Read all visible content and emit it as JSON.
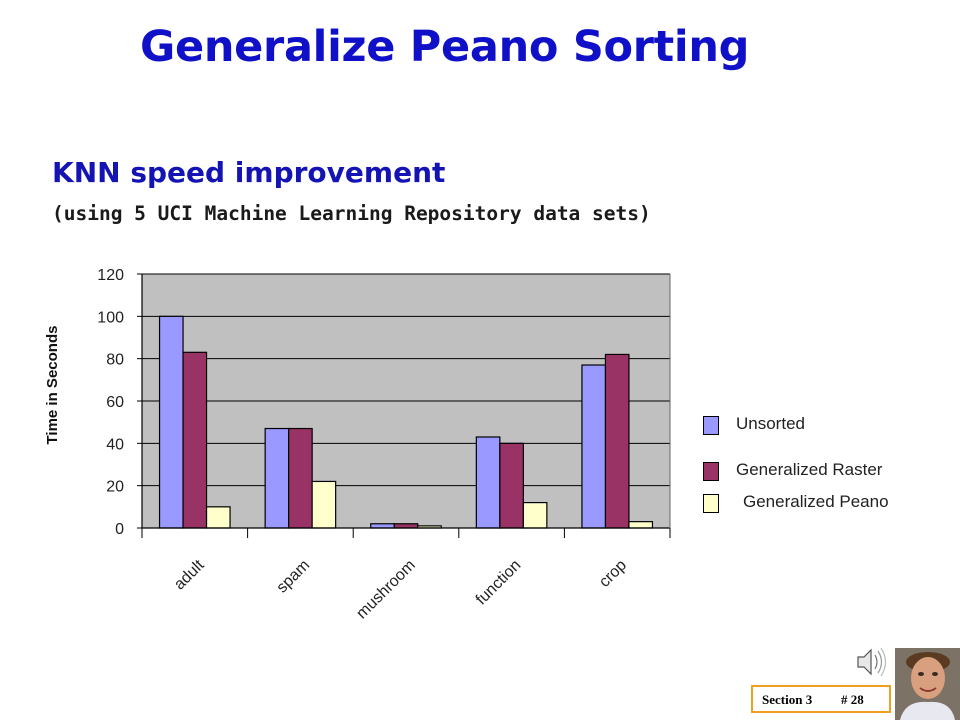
{
  "slide": {
    "title": "Generalize Peano Sorting",
    "subtitle": "KNN speed improvement",
    "subsubtitle": "(using 5 UCI Machine Learning Repository data sets)",
    "footer": {
      "section": "Section 3",
      "page": "# 28"
    }
  },
  "chart_data": {
    "type": "bar",
    "categories": [
      "adult",
      "spam",
      "mushroom",
      "function",
      "crop"
    ],
    "series": [
      {
        "name": "Unsorted",
        "values": [
          100,
          47,
          2,
          43,
          77
        ],
        "color": "#9999ff"
      },
      {
        "name": "Generalized Raster",
        "values": [
          83,
          47,
          2,
          40,
          82
        ],
        "color": "#993366"
      },
      {
        "name": "Generalized Peano",
        "values": [
          10,
          22,
          1,
          12,
          3
        ],
        "color": "#ffffcc"
      }
    ],
    "title": "",
    "xlabel": "",
    "ylabel": "Time in Seconds",
    "ylim": [
      0,
      120
    ],
    "yticks": [
      0,
      20,
      40,
      60,
      80,
      100,
      120
    ],
    "grid": true,
    "plot_background": "#c0c0c0",
    "legend_position": "right"
  },
  "icons": {
    "speaker": "speaker-icon",
    "photo": "presenter-photo"
  }
}
